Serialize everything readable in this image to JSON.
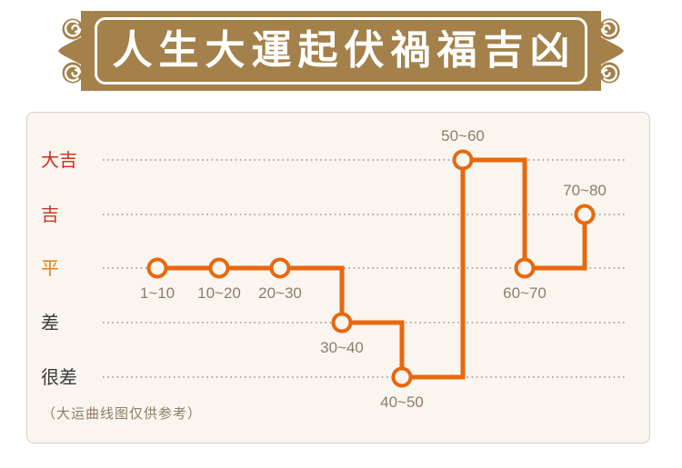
{
  "header": {
    "title": "人生大運起伏禍福吉凶"
  },
  "chart_data": {
    "type": "line",
    "line_style": "step-after",
    "title": "人生大運起伏禍福吉凶",
    "categories": [
      "1~10",
      "10~20",
      "20~30",
      "30~40",
      "40~50",
      "50~60",
      "60~70",
      "70~80"
    ],
    "values": [
      2,
      2,
      2,
      1,
      0,
      4,
      2,
      3
    ],
    "value_labels": [
      "平",
      "平",
      "平",
      "差",
      "很差",
      "大吉",
      "平",
      "吉"
    ],
    "label_positions": [
      "below",
      "below",
      "below",
      "below",
      "below",
      "above",
      "below",
      "above"
    ],
    "y_axis": {
      "levels": [
        {
          "label": "很差",
          "value": 0,
          "color": "#3c3c3c"
        },
        {
          "label": "差",
          "value": 1,
          "color": "#3c3c3c"
        },
        {
          "label": "平",
          "value": 2,
          "color": "#e87c12"
        },
        {
          "label": "吉",
          "value": 3,
          "color": "#bf3a26"
        },
        {
          "label": "大吉",
          "value": 4,
          "color": "#d22b1b"
        }
      ]
    },
    "ylim": [
      0,
      4
    ],
    "xlabel": "",
    "ylabel": "",
    "grid": "dotted-horizontal",
    "legend": "none",
    "colors": {
      "line": "#e8680e",
      "marker_fill": "#faf5ee",
      "point_label": "#8d7d6e",
      "gridline": "#9a948a",
      "banner_gold": "#a4814a",
      "panel_bg": "#faf5ee"
    },
    "note": "（大运曲线图仅供参考）"
  },
  "footer": {
    "note": "（大运曲线图仅供参考）"
  }
}
